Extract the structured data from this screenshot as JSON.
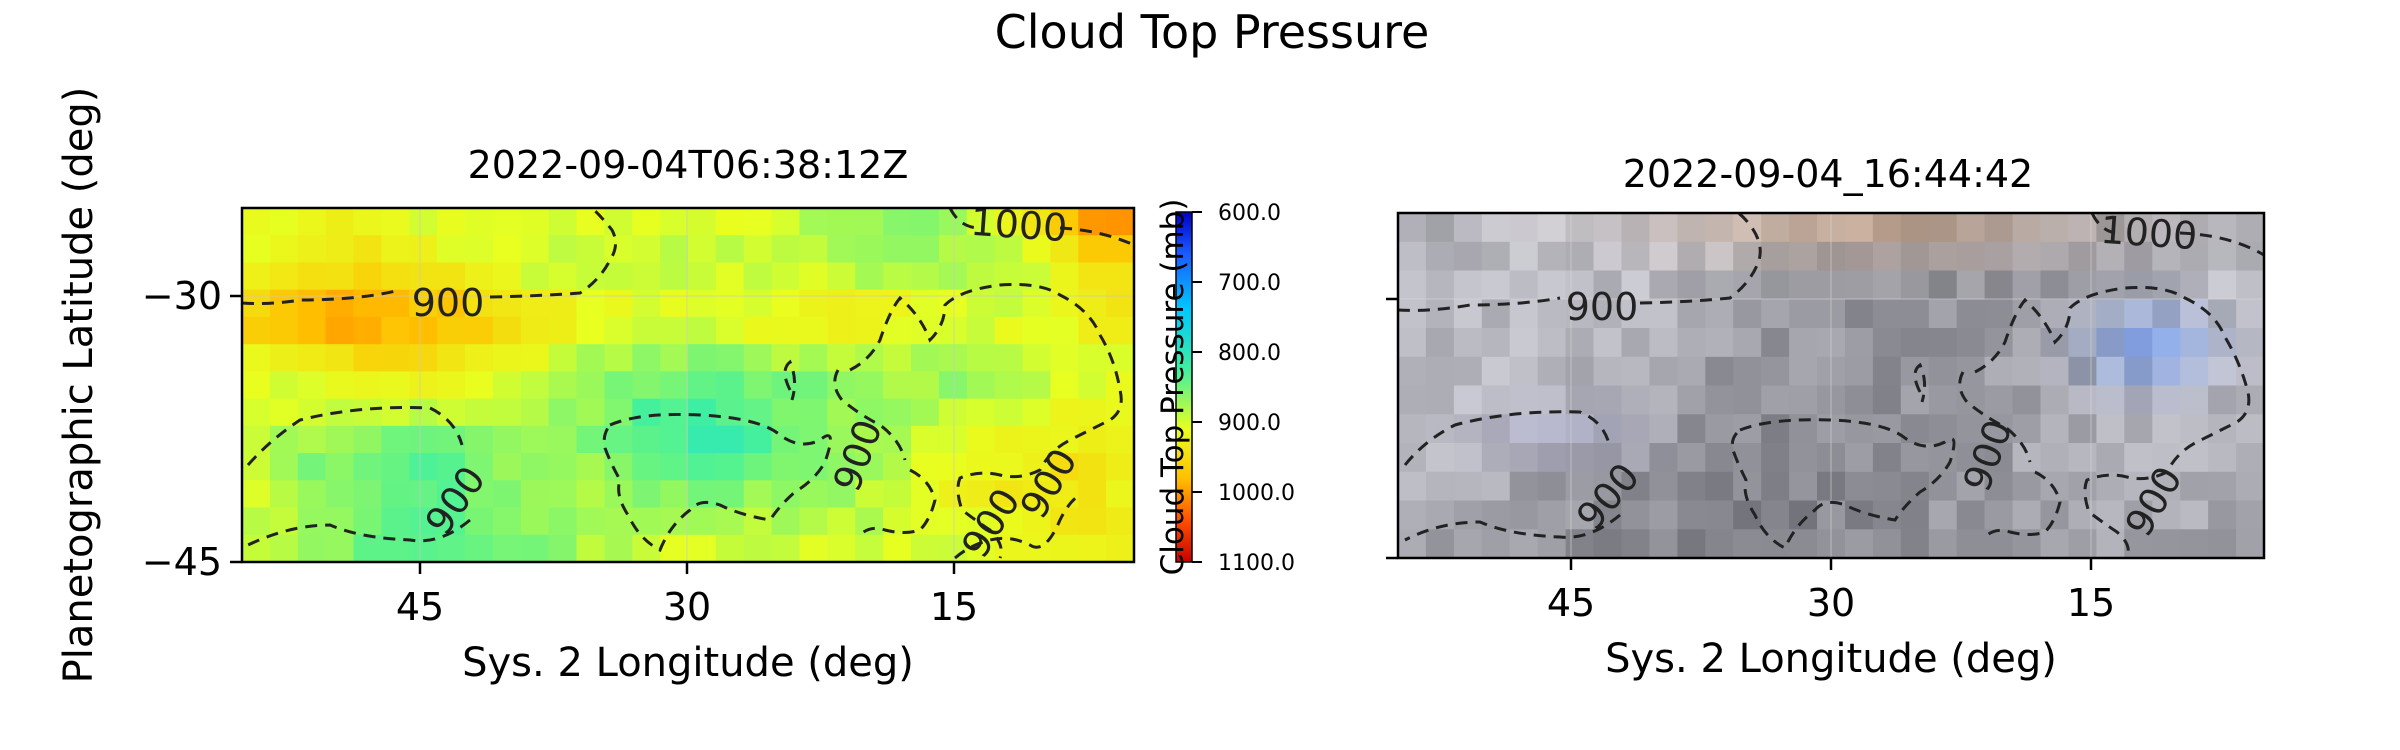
{
  "figure": {
    "title": "Cloud Top Pressure"
  },
  "chart_data": [
    {
      "type": "heatmap",
      "title": "2022-09-04T06:38:12Z",
      "xlabel": "Sys. 2 Longitude (deg)",
      "ylabel": "Planetographic Latitude (deg)",
      "xlim": [
        55,
        4
      ],
      "ylim": [
        -45,
        -25
      ],
      "xticks": [
        45,
        30,
        15
      ],
      "xtick_labels": [
        "45",
        "30",
        "15"
      ],
      "yticks": [
        -30,
        -45
      ],
      "ytick_labels": [
        "−30",
        "−45"
      ],
      "grid": true,
      "colorbar": {
        "label": "Cloud Top Pressure (mb)",
        "range": [
          600,
          1100
        ],
        "ticks": [
          600,
          700,
          800,
          900,
          1000,
          1100
        ],
        "tick_labels": [
          "600.0",
          "700.0",
          "800.0",
          "900.0",
          "1000.0",
          "1100.0"
        ],
        "colors": [
          "#0000cc",
          "#2060ff",
          "#00c8ff",
          "#40f0a0",
          "#e8ff20",
          "#ffc000",
          "#ff5000",
          "#c80000"
        ]
      },
      "contours": [
        {
          "level": 900,
          "label": "900"
        },
        {
          "level": 1000,
          "label": "1000"
        }
      ],
      "contour_label_texts": [
        "1000",
        "900",
        "900",
        "900",
        "900",
        "900"
      ]
    },
    {
      "type": "heatmap",
      "title": "2022-09-04_16:44:42",
      "xlabel": "Sys. 2 Longitude (deg)",
      "xlim": [
        55,
        5
      ],
      "ylim": [
        -45,
        -25
      ],
      "xticks": [
        45,
        30,
        15
      ],
      "xtick_labels": [
        "45",
        "30",
        "15"
      ],
      "grid": true,
      "contours": [
        {
          "level": 900,
          "label": "900"
        },
        {
          "level": 1000,
          "label": "1000"
        }
      ],
      "contour_label_texts": [
        "1000",
        "900",
        "900",
        "900",
        "900"
      ]
    }
  ]
}
